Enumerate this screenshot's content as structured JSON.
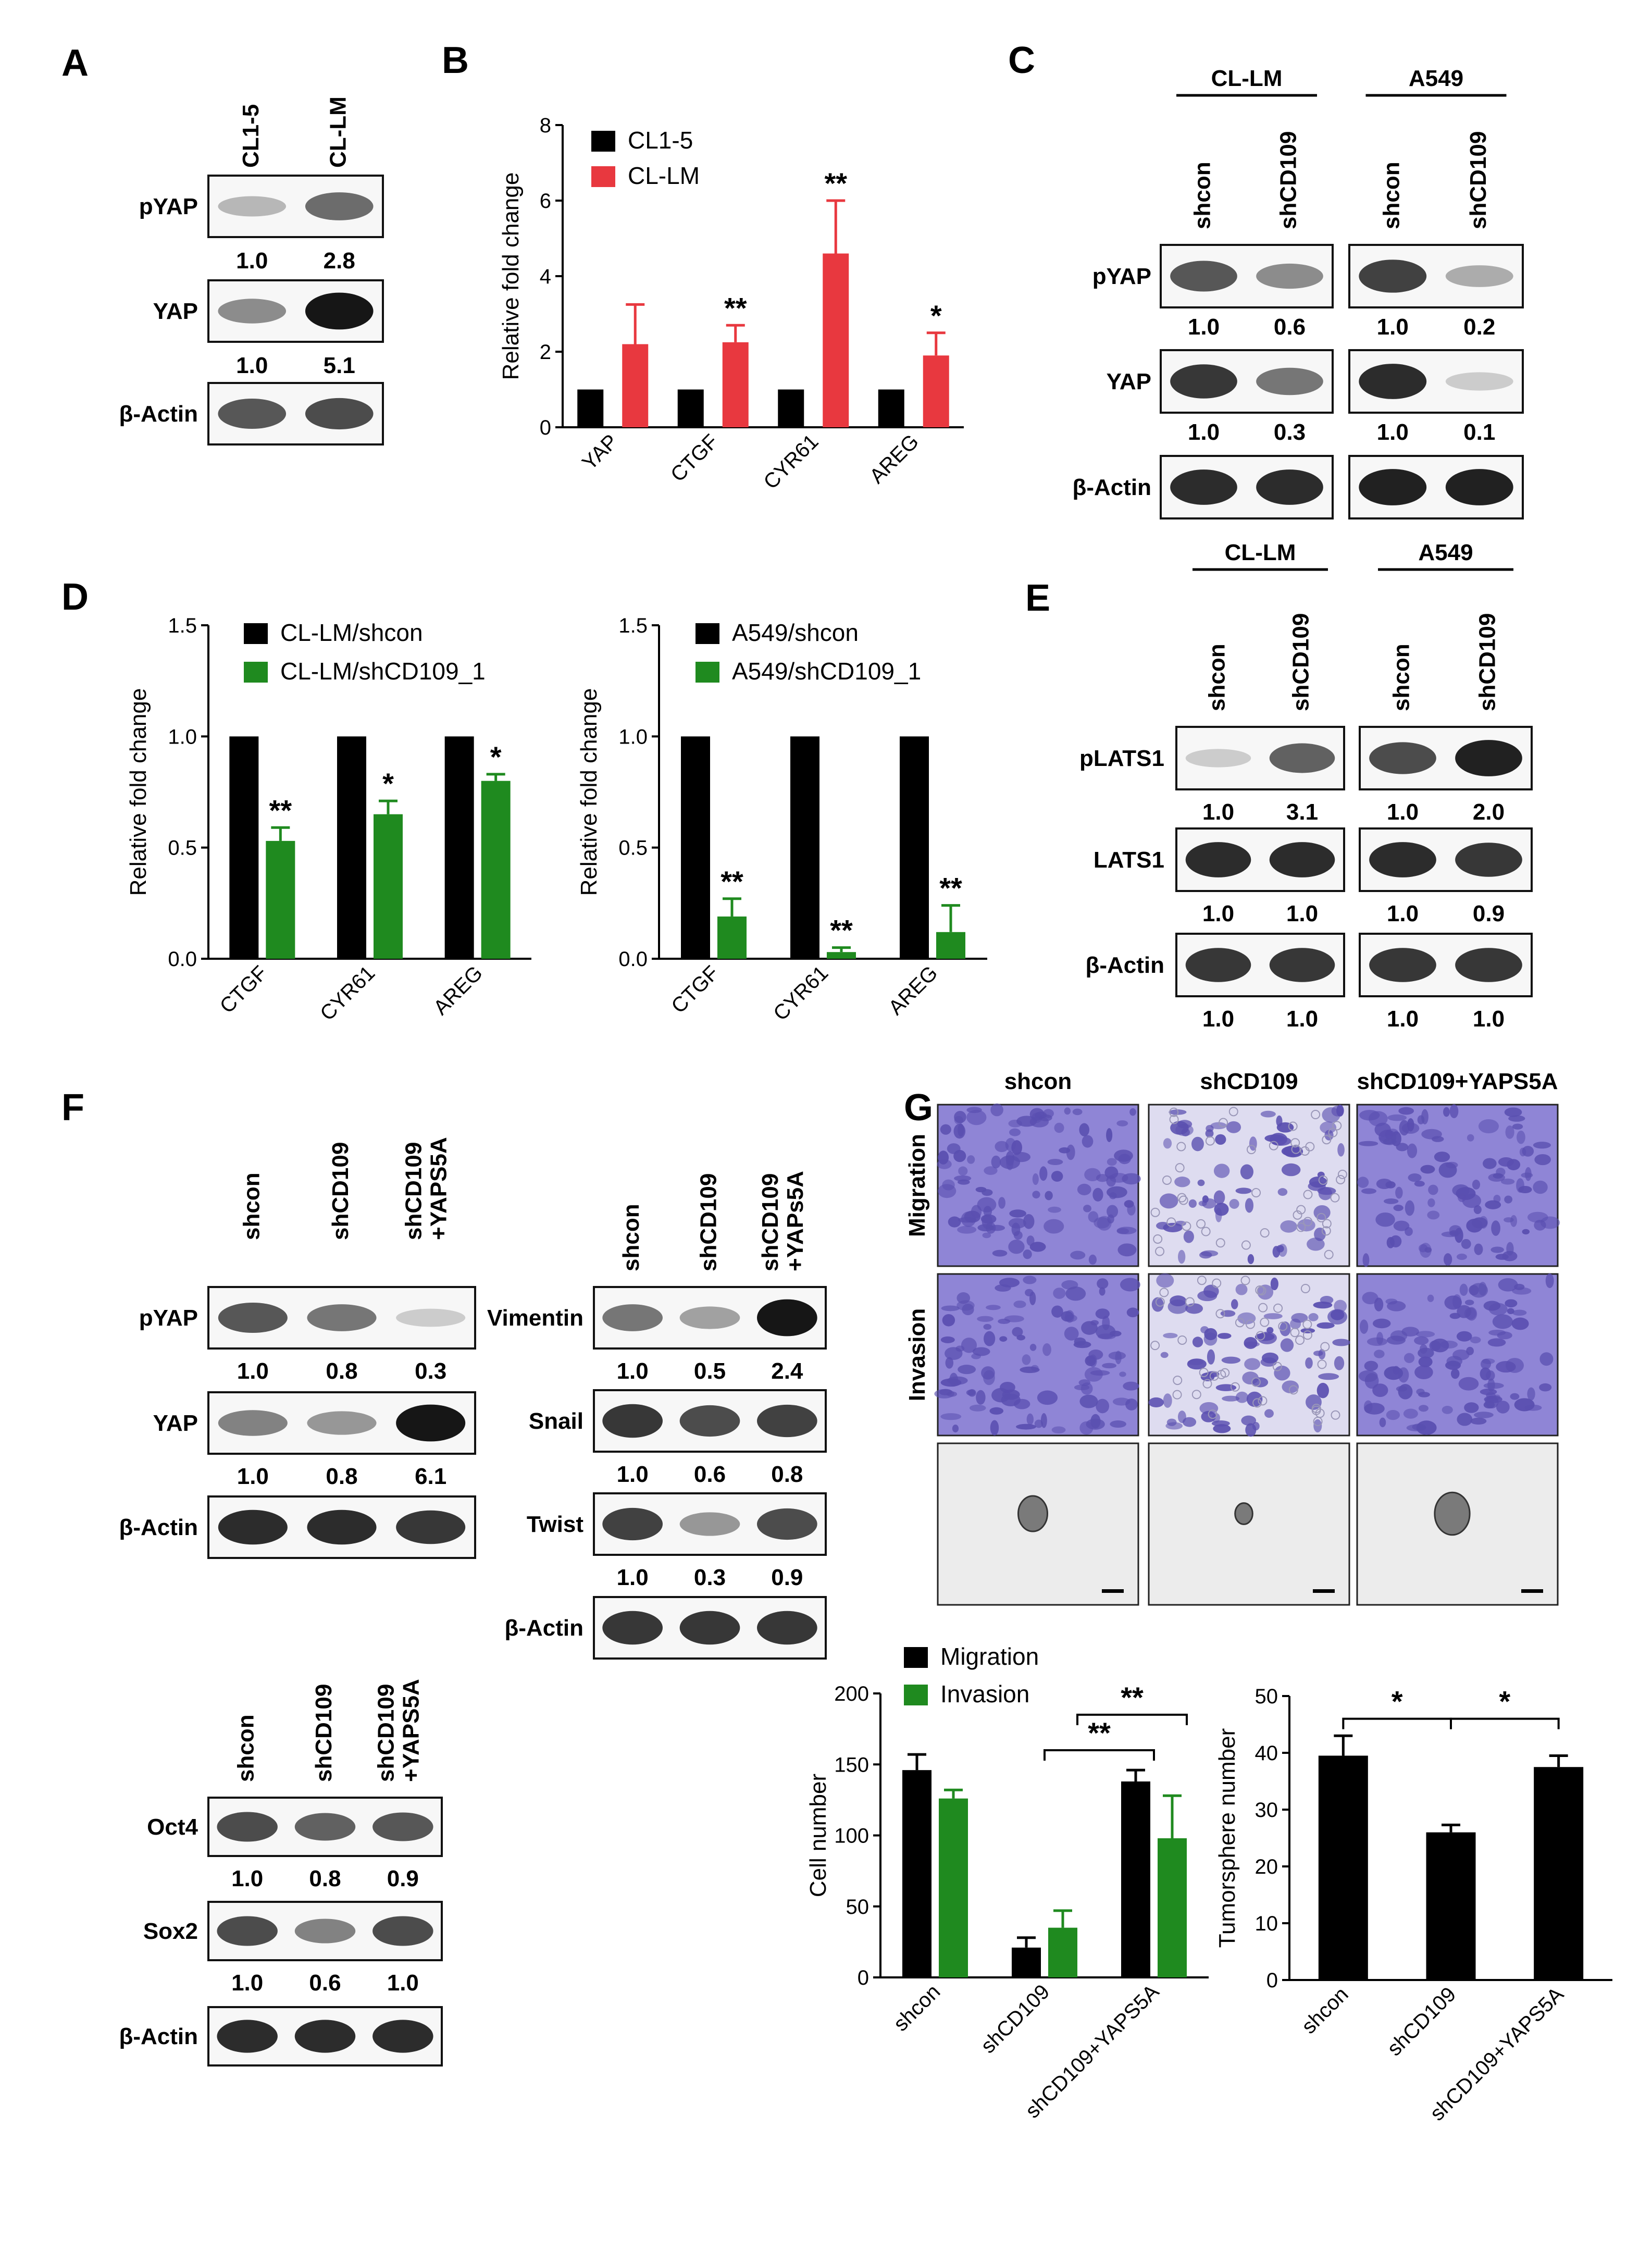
{
  "colors": {
    "black": "#000000",
    "red": "#e8383f",
    "green": "#1f8a1f",
    "stain": "#5a4fb0"
  },
  "panel_letters": [
    "A",
    "B",
    "C",
    "D",
    "E",
    "F",
    "G"
  ],
  "blots": {
    "A": {
      "lanes": [
        "CL1-5",
        "CL-LM"
      ],
      "rows": [
        {
          "label": "pYAP",
          "intensity": [
            0.25,
            0.6
          ],
          "quant": [
            "1.0",
            "2.8"
          ]
        },
        {
          "label": "YAP",
          "intensity": [
            0.45,
            1.0
          ],
          "quant": [
            "1.0",
            "5.1"
          ]
        },
        {
          "label": "β-Actin",
          "intensity": [
            0.7,
            0.75
          ],
          "quant": []
        }
      ]
    },
    "C": {
      "groups": [
        {
          "name": "CL-LM",
          "lanes": [
            "shcon",
            "shCD109"
          ]
        },
        {
          "name": "A549",
          "lanes": [
            "shcon",
            "shCD109"
          ]
        }
      ],
      "rows": [
        {
          "label": "pYAP",
          "intensity": [
            0.7,
            0.45,
            0.8,
            0.3
          ],
          "quant": [
            "1.0",
            "0.6",
            "1.0",
            "0.2"
          ]
        },
        {
          "label": "YAP",
          "intensity": [
            0.85,
            0.55,
            0.9,
            0.15
          ],
          "quant": [
            "1.0",
            "0.3",
            "1.0",
            "0.1"
          ]
        },
        {
          "label": "β-Actin",
          "intensity": [
            0.9,
            0.9,
            0.95,
            0.95
          ],
          "quant": []
        }
      ]
    },
    "E": {
      "groups": [
        {
          "name": "CL-LM",
          "lanes": [
            "shcon",
            "shCD109"
          ]
        },
        {
          "name": "A549",
          "lanes": [
            "shcon",
            "shCD109"
          ]
        }
      ],
      "rows": [
        {
          "label": "pLATS1",
          "intensity": [
            0.15,
            0.65,
            0.75,
            0.95
          ],
          "quant": [
            "1.0",
            "3.1",
            "1.0",
            "2.0"
          ]
        },
        {
          "label": "LATS1",
          "intensity": [
            0.9,
            0.9,
            0.9,
            0.85
          ],
          "quant": [
            "1.0",
            "1.0",
            "1.0",
            "0.9"
          ]
        },
        {
          "label": "β-Actin",
          "intensity": [
            0.85,
            0.85,
            0.85,
            0.85
          ],
          "quant": [
            "1.0",
            "1.0",
            "1.0",
            "1.0"
          ]
        }
      ]
    },
    "F1": {
      "lanes": [
        "shcon",
        "shCD109",
        "shCD109\n+YAPS5A"
      ],
      "rows": [
        {
          "label": "pYAP",
          "intensity": [
            0.7,
            0.55,
            0.15
          ],
          "quant": [
            "1.0",
            "0.8",
            "0.3"
          ]
        },
        {
          "label": "YAP",
          "intensity": [
            0.5,
            0.4,
            1.0
          ],
          "quant": [
            "1.0",
            "0.8",
            "6.1"
          ]
        },
        {
          "label": "β-Actin",
          "intensity": [
            0.9,
            0.9,
            0.85
          ],
          "quant": []
        }
      ]
    },
    "F2": {
      "lanes": [
        "shcon",
        "shCD109",
        "shCD109\n+YAPs5A"
      ],
      "rows": [
        {
          "label": "Vimentin",
          "intensity": [
            0.55,
            0.35,
            1.0
          ],
          "quant": [
            "1.0",
            "0.5",
            "2.4"
          ]
        },
        {
          "label": "Snail",
          "intensity": [
            0.85,
            0.75,
            0.8
          ],
          "quant": [
            "1.0",
            "0.6",
            "0.8"
          ]
        },
        {
          "label": "Twist",
          "intensity": [
            0.8,
            0.4,
            0.75
          ],
          "quant": [
            "1.0",
            "0.3",
            "0.9"
          ]
        },
        {
          "label": "β-Actin",
          "intensity": [
            0.85,
            0.85,
            0.85
          ],
          "quant": []
        }
      ]
    },
    "F3": {
      "lanes": [
        "shcon",
        "shCD109",
        "shCD109\n+YAPS5A"
      ],
      "rows": [
        {
          "label": "Oct4",
          "intensity": [
            0.75,
            0.65,
            0.7
          ],
          "quant": [
            "1.0",
            "0.8",
            "0.9"
          ]
        },
        {
          "label": "Sox2",
          "intensity": [
            0.75,
            0.5,
            0.75
          ],
          "quant": [
            "1.0",
            "0.6",
            "1.0"
          ]
        },
        {
          "label": "β-Actin",
          "intensity": [
            0.9,
            0.9,
            0.9
          ],
          "quant": []
        }
      ]
    }
  },
  "micrographs": {
    "columns": [
      "shcon",
      "shCD109",
      "shCD109+YAPS5A"
    ],
    "rows": [
      "Migration",
      "Invasion",
      ""
    ],
    "density": [
      [
        0.95,
        0.35,
        0.9
      ],
      [
        0.9,
        0.55,
        0.9
      ]
    ],
    "sphere_size": [
      1.0,
      0.6,
      1.2
    ]
  },
  "chart_data": [
    {
      "panel": "B",
      "type": "bar",
      "categories": [
        "YAP",
        "CTGF",
        "CYR61",
        "AREG"
      ],
      "series": [
        {
          "name": "CL1-5",
          "values": [
            1.0,
            1.0,
            1.0,
            1.0
          ],
          "errors": [
            0,
            0,
            0,
            0
          ]
        },
        {
          "name": "CL-LM",
          "values": [
            2.2,
            2.25,
            4.6,
            1.9
          ],
          "errors": [
            1.05,
            0.45,
            1.4,
            0.6
          ]
        }
      ],
      "significance": [
        "",
        "**",
        "**",
        "*"
      ],
      "ylabel": "Relative fold change",
      "ylim": [
        0,
        8
      ],
      "yticks": [
        0,
        2,
        4,
        6,
        8
      ],
      "legend": "top-left"
    },
    {
      "panel": "D",
      "type": "bar",
      "categories": [
        "CTGF",
        "CYR61",
        "AREG"
      ],
      "series": [
        {
          "name": "CL-LM/shcon",
          "values": [
            1.0,
            1.0,
            1.0
          ],
          "errors": [
            0,
            0,
            0
          ]
        },
        {
          "name": "CL-LM/shCD109_1",
          "values": [
            0.53,
            0.65,
            0.8
          ],
          "errors": [
            0.06,
            0.06,
            0.03
          ]
        }
      ],
      "significance": [
        "**",
        "*",
        "*"
      ],
      "ylabel": "Relative fold change",
      "ylim": [
        0,
        1.5
      ],
      "yticks": [
        "0.0",
        "0.5",
        "1.0",
        "1.5"
      ],
      "legend": "top"
    },
    {
      "panel": "D",
      "type": "bar",
      "categories": [
        "CTGF",
        "CYR61",
        "AREG"
      ],
      "series": [
        {
          "name": "A549/shcon",
          "values": [
            1.0,
            1.0,
            1.0
          ],
          "errors": [
            0,
            0,
            0
          ]
        },
        {
          "name": "A549/shCD109_1",
          "values": [
            0.19,
            0.03,
            0.12
          ],
          "errors": [
            0.08,
            0.02,
            0.12
          ]
        }
      ],
      "significance": [
        "**",
        "**",
        "**"
      ],
      "ylabel": "Relative fold change",
      "ylim": [
        0,
        1.5
      ],
      "yticks": [
        "0.0",
        "0.5",
        "1.0",
        "1.5"
      ],
      "legend": "top"
    },
    {
      "panel": "G",
      "type": "bar",
      "categories": [
        "shcon",
        "shCD109",
        "shCD109+YAPS5A"
      ],
      "series": [
        {
          "name": "Migration",
          "values": [
            146,
            21,
            138
          ],
          "errors": [
            11,
            7,
            8
          ]
        },
        {
          "name": "Invasion",
          "values": [
            126,
            35,
            98
          ],
          "errors": [
            6,
            12,
            30
          ]
        }
      ],
      "brackets": [
        {
          "from": 1,
          "to": 2,
          "label": "**",
          "level": 160
        },
        {
          "from": 1.3,
          "to": 2.3,
          "label": "**",
          "level": 185
        }
      ],
      "ylabel": "Cell number",
      "ylim": [
        0,
        200
      ],
      "yticks": [
        0,
        50,
        100,
        150,
        200
      ],
      "legend": "top-left"
    },
    {
      "panel": "G",
      "type": "bar",
      "categories": [
        "shcon",
        "shCD109",
        "shCD109+YAPS5A"
      ],
      "series": [
        {
          "values": [
            39.5,
            26,
            37.5
          ],
          "errors": [
            3.5,
            1.3,
            2
          ]
        }
      ],
      "brackets": [
        {
          "from": 0,
          "to": 1,
          "label": "*",
          "level": 46
        },
        {
          "from": 1,
          "to": 2,
          "label": "*",
          "level": 46
        }
      ],
      "ylabel": "Tumorsphere number",
      "ylim": [
        0,
        50
      ],
      "yticks": [
        0,
        10,
        20,
        30,
        40,
        50
      ]
    }
  ]
}
